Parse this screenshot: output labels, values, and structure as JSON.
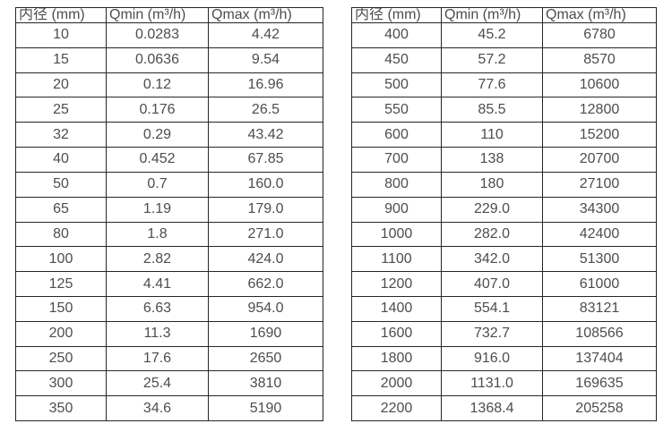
{
  "colors": {
    "background": "#ffffff",
    "border": "#262626",
    "text": "#4d4d4d"
  },
  "tables": [
    {
      "headers": [
        "内径 (mm)",
        "Qmin (m³/h)",
        "Qmax (m³/h)"
      ],
      "rows": [
        [
          "10",
          "0.0283",
          "4.42"
        ],
        [
          "15",
          "0.0636",
          "9.54"
        ],
        [
          "20",
          "0.12",
          "16.96"
        ],
        [
          "25",
          "0.176",
          "26.5"
        ],
        [
          "32",
          "0.29",
          "43.42"
        ],
        [
          "40",
          "0.452",
          "67.85"
        ],
        [
          "50",
          "0.7",
          "160.0"
        ],
        [
          "65",
          "1.19",
          "179.0"
        ],
        [
          "80",
          "1.8",
          "271.0"
        ],
        [
          "100",
          "2.82",
          "424.0"
        ],
        [
          "125",
          "4.41",
          "662.0"
        ],
        [
          "150",
          "6.63",
          "954.0"
        ],
        [
          "200",
          "11.3",
          "1690"
        ],
        [
          "250",
          "17.6",
          "2650"
        ],
        [
          "300",
          "25.4",
          "3810"
        ],
        [
          "350",
          "34.6",
          "5190"
        ]
      ]
    },
    {
      "headers": [
        "内径 (mm)",
        "Qmin (m³/h)",
        "Qmax (m³/h)"
      ],
      "rows": [
        [
          "400",
          "45.2",
          "6780"
        ],
        [
          "450",
          "57.2",
          "8570"
        ],
        [
          "500",
          "77.6",
          "10600"
        ],
        [
          "550",
          "85.5",
          "12800"
        ],
        [
          "600",
          "110",
          "15200"
        ],
        [
          "700",
          "138",
          "20700"
        ],
        [
          "800",
          "180",
          "27100"
        ],
        [
          "900",
          "229.0",
          "34300"
        ],
        [
          "1000",
          "282.0",
          "42400"
        ],
        [
          "1100",
          "342.0",
          "51300"
        ],
        [
          "1200",
          "407.0",
          "61000"
        ],
        [
          "1400",
          "554.1",
          "83121"
        ],
        [
          "1600",
          "732.7",
          "108566"
        ],
        [
          "1800",
          "916.0",
          "137404"
        ],
        [
          "2000",
          "1131.0",
          "169635"
        ],
        [
          "2200",
          "1368.4",
          "205258"
        ]
      ]
    }
  ]
}
